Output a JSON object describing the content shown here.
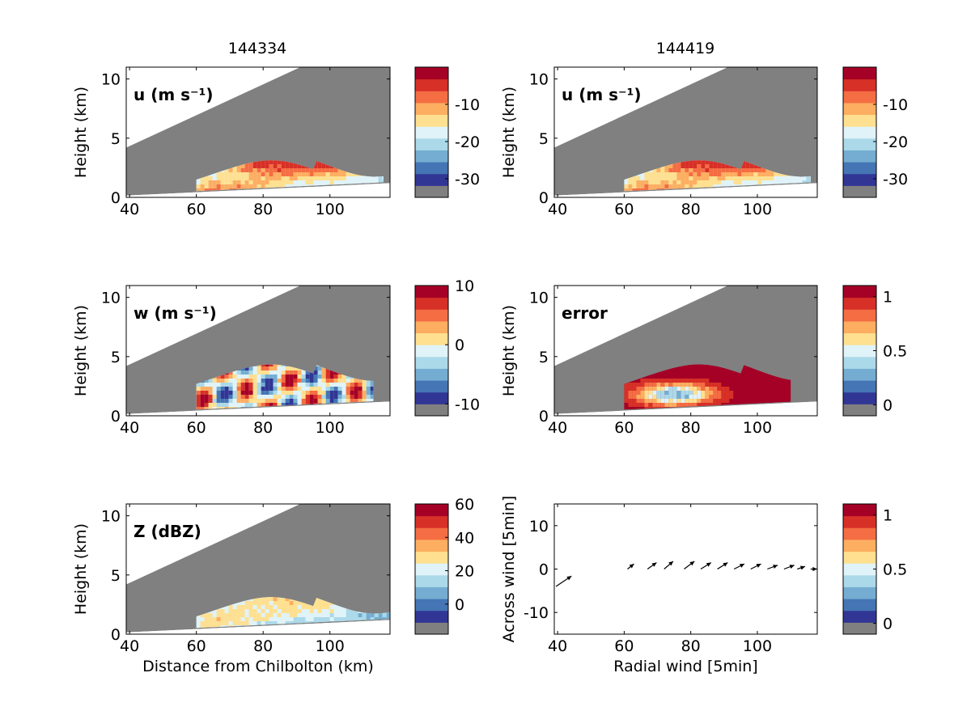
{
  "panel_titles": [
    "144334",
    "144419"
  ],
  "chart_data": [
    {
      "type": "heatmap",
      "title": "144334",
      "label": "u (m s⁻¹)",
      "xticks": [
        40,
        60,
        80,
        100
      ],
      "yticks": [
        0,
        5,
        10
      ],
      "xlim": [
        39,
        118
      ],
      "ylim": [
        0,
        11
      ],
      "ylabel": "Height (km)",
      "xlabel": "",
      "colorbar": {
        "range": [
          -35,
          0
        ],
        "ticks": [
          -10,
          -20,
          -30
        ]
      }
    },
    {
      "type": "heatmap",
      "title": "144419",
      "label": "u (m s⁻¹)",
      "xticks": [
        40,
        60,
        80,
        100
      ],
      "yticks": [
        0,
        5,
        10
      ],
      "xlim": [
        39,
        118
      ],
      "ylim": [
        0,
        11
      ],
      "ylabel": "Height (km)",
      "xlabel": "",
      "colorbar": {
        "range": [
          -35,
          0
        ],
        "ticks": [
          -10,
          -20,
          -30
        ]
      }
    },
    {
      "type": "heatmap",
      "label": "w (m s⁻¹)",
      "xticks": [
        40,
        60,
        80,
        100
      ],
      "yticks": [
        0,
        5,
        10
      ],
      "xlim": [
        39,
        118
      ],
      "ylim": [
        0,
        11
      ],
      "ylabel": "Height (km)",
      "xlabel": "",
      "colorbar": {
        "range": [
          -12,
          10
        ],
        "ticks": [
          10,
          0,
          -10
        ]
      }
    },
    {
      "type": "heatmap",
      "label": "error",
      "xticks": [
        40,
        60,
        80,
        100
      ],
      "yticks": [
        0,
        5,
        10
      ],
      "xlim": [
        39,
        118
      ],
      "ylim": [
        0,
        11
      ],
      "ylabel": "Height (km)",
      "xlabel": "",
      "colorbar": {
        "range": [
          -0.1,
          1.1
        ],
        "ticks": [
          1,
          0.5,
          0
        ]
      }
    },
    {
      "type": "heatmap",
      "label": "Z (dBZ)",
      "xticks": [
        40,
        60,
        80,
        100
      ],
      "yticks": [
        0,
        5,
        10
      ],
      "xlim": [
        39,
        118
      ],
      "ylim": [
        0,
        11
      ],
      "ylabel": "Height (km)",
      "xlabel": "Distance from Chilbolton (km)",
      "colorbar": {
        "range": [
          -18,
          60
        ],
        "ticks": [
          60,
          40,
          20,
          0
        ]
      }
    },
    {
      "type": "quiver",
      "xticks": [
        40,
        60,
        80,
        100
      ],
      "yticks": [
        -10,
        0,
        10
      ],
      "xlim": [
        39,
        118
      ],
      "ylim": [
        -15,
        15
      ],
      "ylabel": "Across wind [5min]",
      "xlabel": "Radial wind [5min]",
      "vectors": [
        {
          "x": 39.5,
          "y": -4,
          "u": 6,
          "v": 4
        },
        {
          "x": 61,
          "y": 0,
          "u": 2.5,
          "v": 2
        },
        {
          "x": 67,
          "y": 0,
          "u": 3.5,
          "v": 2.5
        },
        {
          "x": 72,
          "y": 0,
          "u": 3.5,
          "v": 3
        },
        {
          "x": 78,
          "y": 0,
          "u": 4,
          "v": 3
        },
        {
          "x": 83,
          "y": 0,
          "u": 4,
          "v": 2.5
        },
        {
          "x": 88,
          "y": 0,
          "u": 4,
          "v": 2.5
        },
        {
          "x": 93,
          "y": 0,
          "u": 4,
          "v": 2
        },
        {
          "x": 98,
          "y": 0,
          "u": 4,
          "v": 2
        },
        {
          "x": 103,
          "y": 0,
          "u": 4,
          "v": 1.5
        },
        {
          "x": 108,
          "y": 0,
          "u": 4,
          "v": 1.5
        },
        {
          "x": 112,
          "y": 0,
          "u": 3,
          "v": 1
        },
        {
          "x": 116,
          "y": 0,
          "u": 2.5,
          "v": 0
        }
      ],
      "colorbar": {
        "range": [
          -0.1,
          1.1
        ],
        "ticks": [
          1,
          0.5,
          0
        ]
      }
    }
  ],
  "colors": {
    "scale": [
      "#808080",
      "#313695",
      "#4575b4",
      "#74add1",
      "#abd9e9",
      "#e0f3f8",
      "#fee090",
      "#fdae61",
      "#f46d43",
      "#d73027",
      "#a50026"
    ],
    "no_data": "#808080"
  }
}
